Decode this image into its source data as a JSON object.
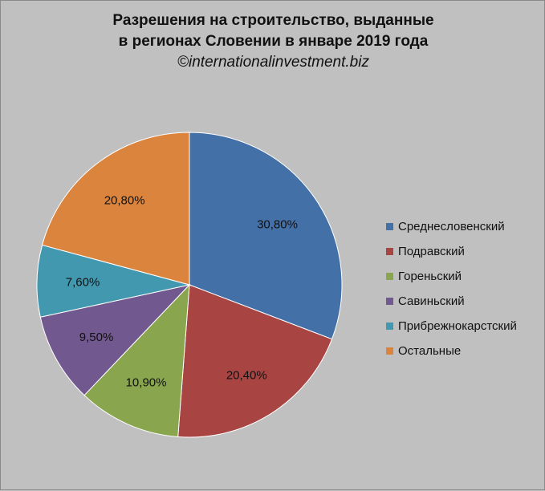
{
  "chart_data": {
    "type": "pie",
    "title_lines": [
      "Разрешения на строительство, выданные",
      "в регионах Словении в январе 2019 года"
    ],
    "subtitle": "©internationalinvestment.biz",
    "legend_position": "right",
    "slices": [
      {
        "name": "Среднесловенский",
        "value": 30.8,
        "label": "30,80%",
        "color": "#4470a8"
      },
      {
        "name": "Подравский",
        "value": 20.4,
        "label": "20,40%",
        "color": "#a84442"
      },
      {
        "name": "Гореньский",
        "value": 10.9,
        "label": "10,90%",
        "color": "#89a54e"
      },
      {
        "name": "Савиньский",
        "value": 9.5,
        "label": "9,50%",
        "color": "#71588f"
      },
      {
        "name": "Прибрежнокарстский",
        "value": 7.6,
        "label": "7,60%",
        "color": "#4198af"
      },
      {
        "name": "Остальные",
        "value": 20.8,
        "label": "20,80%",
        "color": "#db843d"
      }
    ]
  }
}
